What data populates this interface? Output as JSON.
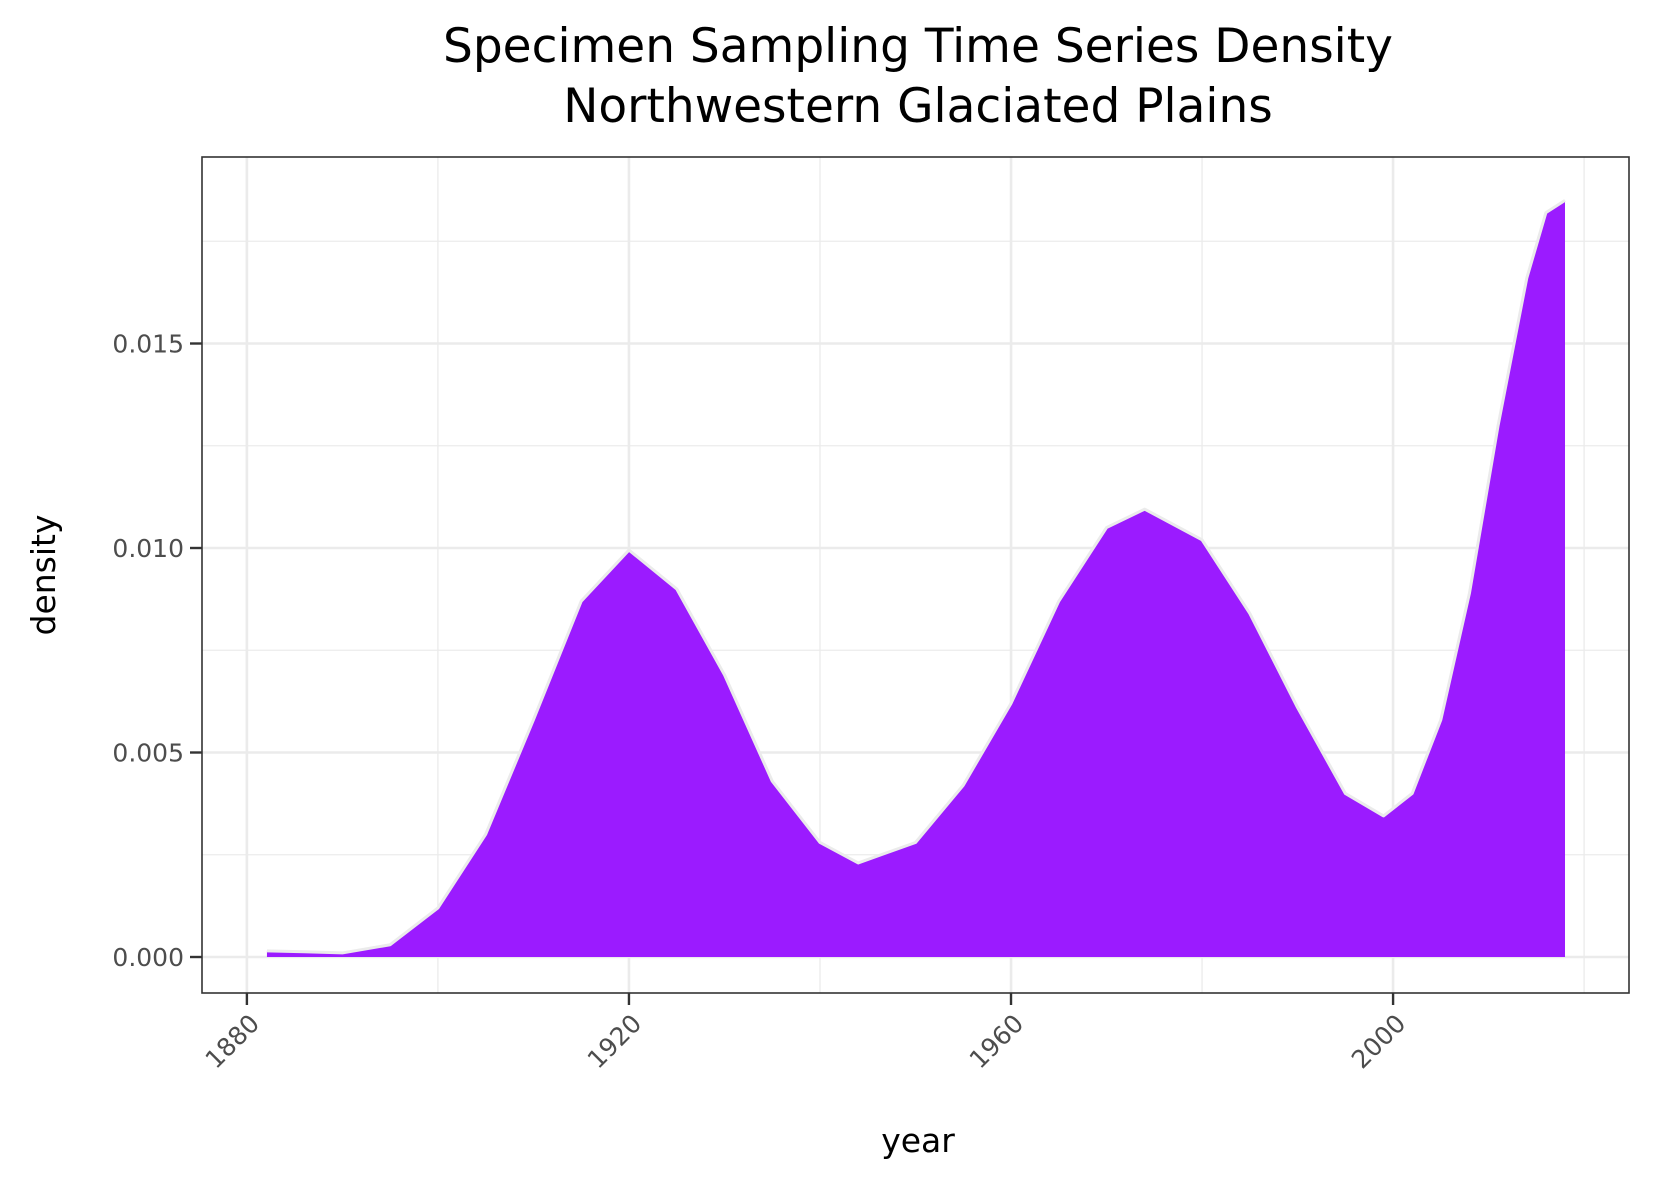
{
  "chart_data": {
    "type": "area",
    "title": "Specimen Sampling Time Series Density",
    "subtitle": "Northwestern Glaciated Plains",
    "xlabel": "year",
    "ylabel": "density",
    "xlim": [
      1875.3,
      2024.7
    ],
    "ylim": [
      -0.00088,
      0.01956
    ],
    "x_ticks": [
      1880,
      1920,
      1960,
      2000
    ],
    "x_tick_labels": [
      "1880",
      "1920",
      "1960",
      "2000"
    ],
    "y_ticks": [
      0,
      0.005,
      0.01,
      0.015
    ],
    "y_tick_labels": [
      "0.000",
      "0.005",
      "0.010",
      "0.015"
    ],
    "grid": true,
    "fill_color": "#9B1BFF",
    "outline_color": "#EBEBEB",
    "series": [
      {
        "name": "density",
        "x": [
          1882.1,
          1886,
          1890,
          1895,
          1900,
          1905,
          1910,
          1915,
          1920,
          1925,
          1930,
          1935,
          1940,
          1944,
          1950,
          1955,
          1960,
          1965,
          1970,
          1974,
          1980,
          1985,
          1990,
          1995,
          1999,
          2002,
          2005,
          2008,
          2011,
          2014,
          2016,
          2018
        ],
        "y": [
          0.00015,
          0.00013,
          0.0001,
          0.0003,
          0.0012,
          0.003,
          0.0058,
          0.0087,
          0.00995,
          0.009,
          0.0069,
          0.0043,
          0.0028,
          0.0023,
          0.0028,
          0.0042,
          0.0062,
          0.0087,
          0.0105,
          0.01095,
          0.0102,
          0.0084,
          0.0061,
          0.004,
          0.00345,
          0.004,
          0.0058,
          0.0089,
          0.013,
          0.0166,
          0.0182,
          0.0185
        ]
      }
    ]
  }
}
